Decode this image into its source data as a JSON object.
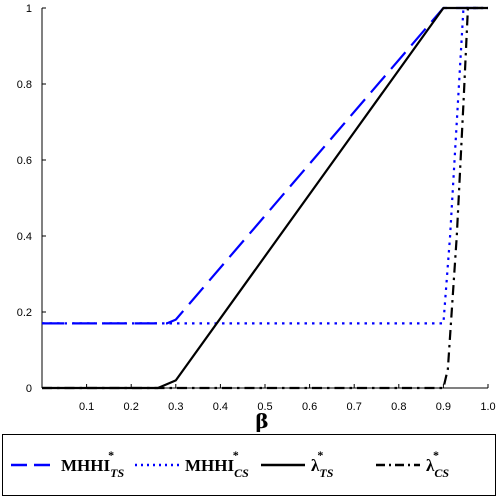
{
  "chart_data": {
    "type": "line",
    "xlabel": "β",
    "ylabel": "",
    "xlim": [
      0,
      1.0
    ],
    "ylim": [
      0,
      1
    ],
    "xticks": [
      "0.1",
      "0.2",
      "0.3",
      "0.4",
      "0.5",
      "0.6",
      "0.7",
      "0.8",
      "0.9",
      "1.0"
    ],
    "yticks": [
      "0",
      "0.2",
      "0.4",
      "0.6",
      "0.8",
      "1"
    ],
    "series": [
      {
        "name": "MHHI",
        "sub": "TS",
        "sup": "*",
        "color": "#0000ff",
        "dash": "long-dash",
        "x": [
          0,
          0.26,
          0.28,
          0.3,
          0.9,
          1.0
        ],
        "y": [
          0.17,
          0.17,
          0.17,
          0.18,
          1.0,
          1.0
        ]
      },
      {
        "name": "MHHI",
        "sub": "CS",
        "sup": "*",
        "color": "#0000ff",
        "dash": "dot",
        "x": [
          0,
          0.9,
          0.915,
          0.93,
          0.945,
          1.0
        ],
        "y": [
          0.17,
          0.17,
          0.4,
          0.7,
          1.0,
          1.0
        ]
      },
      {
        "name": "λ",
        "sub": "TS",
        "sup": "*",
        "color": "#000000",
        "dash": "solid",
        "x": [
          0,
          0.26,
          0.3,
          0.9,
          1.0
        ],
        "y": [
          0,
          0,
          0.02,
          1.0,
          1.0
        ]
      },
      {
        "name": "λ",
        "sub": "CS",
        "sup": "*",
        "color": "#000000",
        "dash": "dash-dot",
        "x": [
          0,
          0.9,
          0.91,
          0.93,
          0.945,
          0.955,
          1.0
        ],
        "y": [
          0,
          0,
          0.05,
          0.4,
          0.75,
          1.0,
          1.0
        ]
      }
    ]
  }
}
